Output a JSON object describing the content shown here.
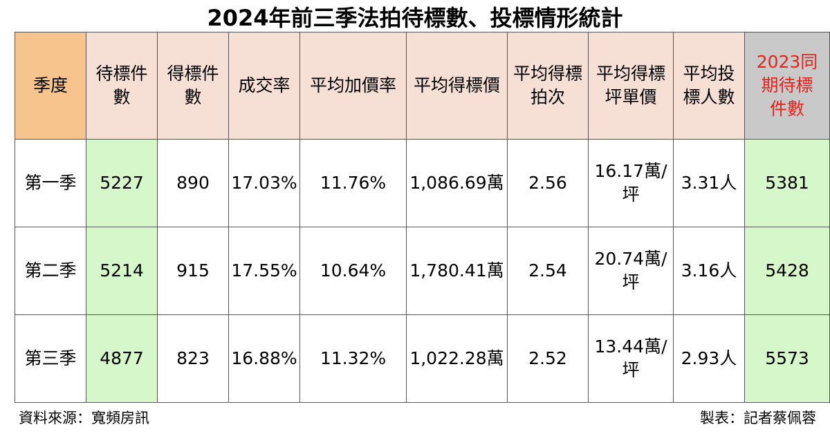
{
  "title": "2024年前三季法拍待標數、投標情形統計",
  "chart_data": {
    "type": "table",
    "columns": [
      {
        "line1": "季度",
        "line2": ""
      },
      {
        "line1": "待標件",
        "line2": "數"
      },
      {
        "line1": "得標件",
        "line2": "數"
      },
      {
        "line1": "成交率",
        "line2": ""
      },
      {
        "line1": "平均加價率",
        "line2": ""
      },
      {
        "line1": "平均得標價",
        "line2": ""
      },
      {
        "line1": "平均得標",
        "line2": "拍次"
      },
      {
        "line1": "平均得標",
        "line2": "坪單價"
      },
      {
        "line1": "平均投",
        "line2": "標人數"
      },
      {
        "line1": "2023同",
        "line2": "期待標",
        "line3": "件數"
      }
    ],
    "rows": [
      {
        "season": "第一季",
        "pending": "5227",
        "won": "890",
        "rate": "17.03%",
        "markup": "11.76%",
        "avg_price": "1,086.69萬",
        "rounds": "2.56",
        "unit_price_a": "16.17萬/",
        "unit_price_b": "坪",
        "bidders": "3.31人",
        "pending_2023": "5381"
      },
      {
        "season": "第二季",
        "pending": "5214",
        "won": "915",
        "rate": "17.55%",
        "markup": "10.64%",
        "avg_price": "1,780.41萬",
        "rounds": "2.54",
        "unit_price_a": "20.74萬/",
        "unit_price_b": "坪",
        "bidders": "3.16人",
        "pending_2023": "5428"
      },
      {
        "season": "第三季",
        "pending": "4877",
        "won": "823",
        "rate": "16.88%",
        "markup": "11.32%",
        "avg_price": "1,022.28萬",
        "rounds": "2.52",
        "unit_price_a": "13.44萬/",
        "unit_price_b": "坪",
        "bidders": "2.93人",
        "pending_2023": "5573"
      }
    ]
  },
  "footer": {
    "source": "資料來源：寬頻房訊",
    "author": "製表：記者蔡佩蓉"
  },
  "colors": {
    "header": "#f6dfd4",
    "season_header": "#f8c48e",
    "last_header": "#c9c9c9",
    "last_header_text": "#e3241b",
    "highlight": "#d6f7c9"
  }
}
